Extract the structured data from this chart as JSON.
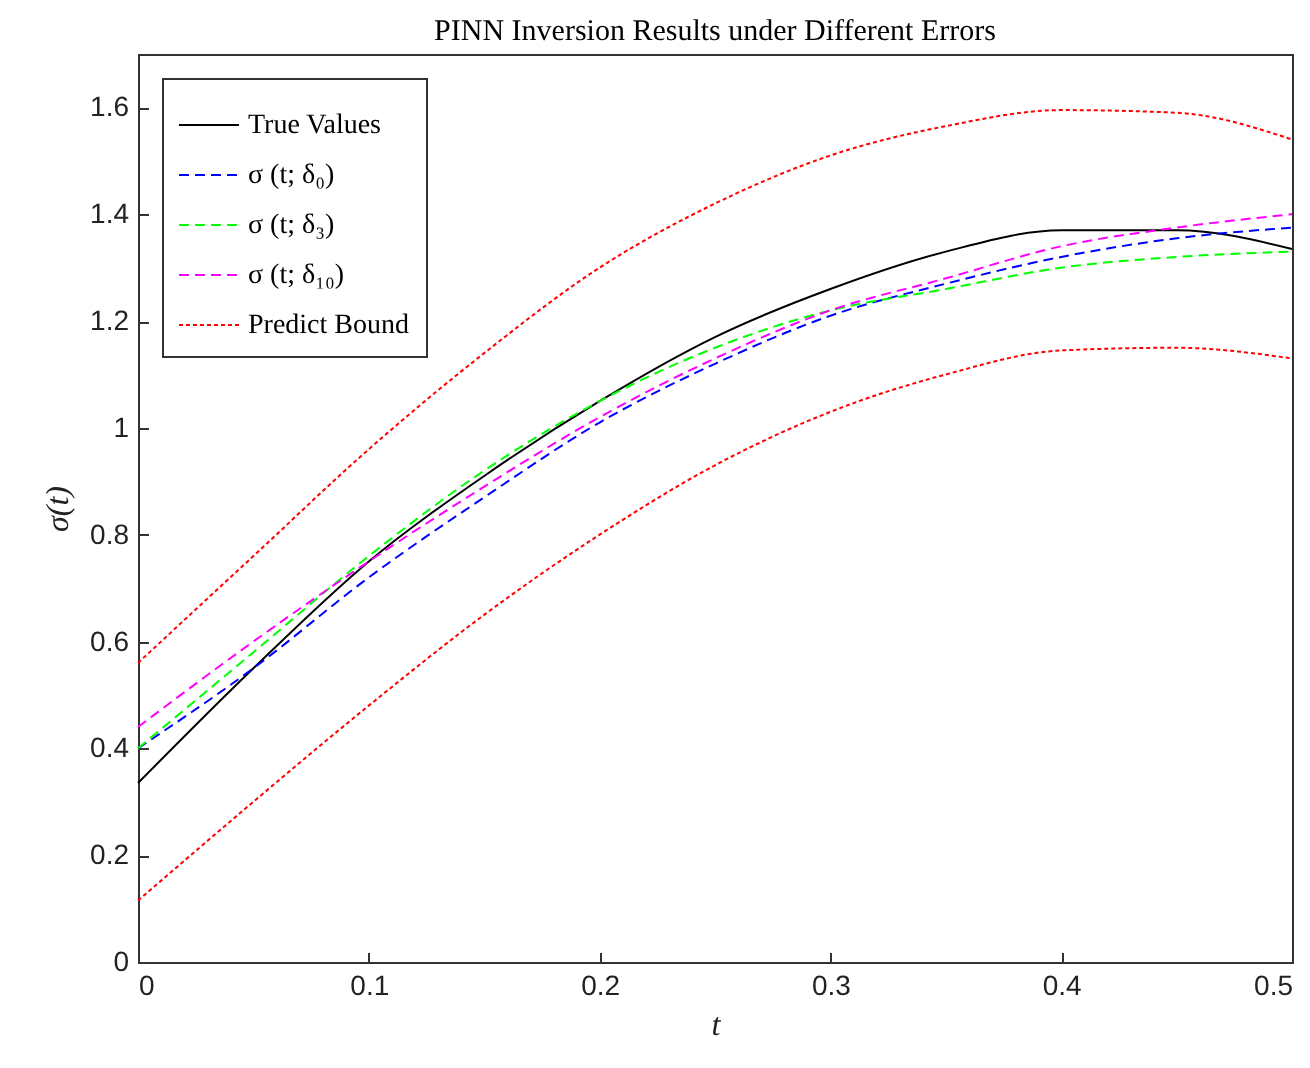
{
  "chart_data": {
    "type": "line",
    "title": "PINN Inversion Results under Different Errors",
    "xlabel": "t",
    "ylabel": "σ(t)",
    "x": [
      0,
      0.05,
      0.1,
      0.15,
      0.2,
      0.25,
      0.3,
      0.35,
      0.4,
      0.45,
      0.5
    ],
    "series": [
      {
        "name": "True Values",
        "color": "#000000",
        "line_style": "solid",
        "values": [
          0.335,
          0.55,
          0.75,
          0.91,
          1.05,
          1.17,
          1.26,
          1.33,
          1.37,
          1.37,
          1.335
        ]
      },
      {
        "name": "σ (t; δ₀)",
        "color": "#0000ff",
        "line_style": "dashed",
        "values": [
          0.4,
          0.55,
          0.72,
          0.87,
          1.01,
          1.12,
          1.21,
          1.27,
          1.32,
          1.355,
          1.375
        ]
      },
      {
        "name": "σ (t; δ₃)",
        "color": "#00ff00",
        "line_style": "dashed",
        "values": [
          0.4,
          0.58,
          0.76,
          0.92,
          1.05,
          1.15,
          1.22,
          1.26,
          1.3,
          1.32,
          1.33
        ]
      },
      {
        "name": "σ (t; δ₁₀)",
        "color": "#ff00ff",
        "line_style": "dashed",
        "values": [
          0.44,
          0.6,
          0.75,
          0.89,
          1.02,
          1.13,
          1.22,
          1.28,
          1.34,
          1.375,
          1.4
        ]
      },
      {
        "name": "Predict Bound",
        "color": "#ff0000",
        "line_style": "dotted",
        "values": [
          0.56,
          0.76,
          0.96,
          1.14,
          1.3,
          1.42,
          1.51,
          1.565,
          1.595,
          1.59,
          1.54
        ]
      },
      {
        "color": "#ff0000",
        "line_style": "dotted",
        "values": [
          0.115,
          0.3,
          0.48,
          0.65,
          0.8,
          0.93,
          1.03,
          1.1,
          1.145,
          1.15,
          1.13
        ]
      }
    ],
    "xlim": [
      0,
      0.5
    ],
    "xticks": [
      0,
      0.1,
      0.2,
      0.3,
      0.4,
      0.5
    ],
    "ylim": [
      0,
      1.7
    ],
    "yticks": [
      0,
      0.2,
      0.4,
      0.6,
      0.8,
      1,
      1.2,
      1.4,
      1.6
    ],
    "legend": "top left"
  }
}
